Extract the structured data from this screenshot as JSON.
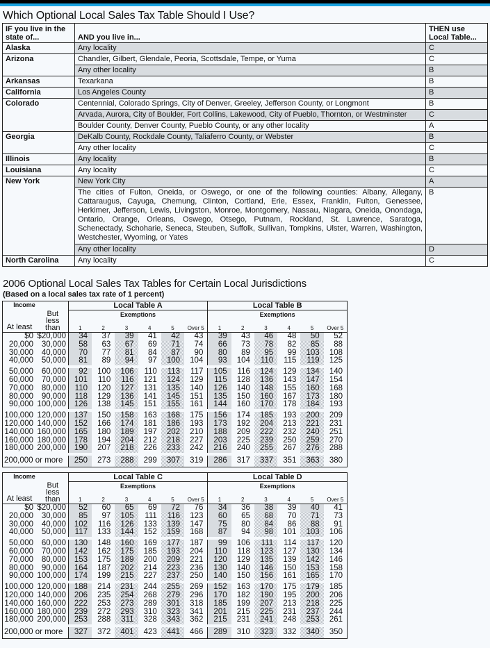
{
  "title": "Which Optional Local Sales Tax Table Should I Use?",
  "which_table": {
    "headers": [
      "IF you live in the state of...",
      "AND you live in...",
      "THEN use Local Table..."
    ],
    "states": [
      {
        "name": "Alaska",
        "rows": [
          {
            "locality": "Any locality",
            "table": "C"
          }
        ]
      },
      {
        "name": "Arizona",
        "rows": [
          {
            "locality": "Chandler, Gilbert, Glendale, Peoria, Scottsdale, Tempe, or Yuma",
            "table": "C"
          },
          {
            "locality": "Any other locality",
            "table": "B"
          }
        ]
      },
      {
        "name": "Arkansas",
        "rows": [
          {
            "locality": "Texarkana",
            "table": "B"
          }
        ]
      },
      {
        "name": "California",
        "rows": [
          {
            "locality": "Los Angeles County",
            "table": "B"
          }
        ]
      },
      {
        "name": "Colorado",
        "rows": [
          {
            "locality": "Centennial, Colorado Springs, City of Denver, Greeley, Jefferson County, or Longmont",
            "table": "B"
          },
          {
            "locality": "Arvada, Aurora, City of Boulder, Fort Collins, Lakewood, City of Pueblo, Thornton, or Westminster",
            "table": "C"
          },
          {
            "locality": "Boulder County, Denver County, Pueblo County, or any other locality",
            "table": "A"
          }
        ]
      },
      {
        "name": "Georgia",
        "rows": [
          {
            "locality": "DeKalb County, Rockdale County, Taliaferro County, or Webster",
            "table": "B"
          },
          {
            "locality": "Any other locality",
            "table": "C"
          }
        ]
      },
      {
        "name": "Illinois",
        "rows": [
          {
            "locality": "Any locality",
            "table": "B"
          }
        ]
      },
      {
        "name": "Louisiana",
        "rows": [
          {
            "locality": "Any locality",
            "table": "C"
          }
        ]
      },
      {
        "name": "New York",
        "rows": [
          {
            "locality": "New York City",
            "table": "A"
          },
          {
            "locality": "The cities of Fulton, Oneida, or Oswego, or one of the following counties: Albany, Allegany, Cattaraugus, Cayuga, Chemung, Clinton, Cortland, Erie, Essex, Franklin, Fulton, Genessee, Herkimer, Jefferson, Lewis, Livingston, Monroe, Montgomery, Nassau, Niagara, Oneida, Onondaga, Ontario, Orange, Orleans, Oswego, Otsego, Putnam, Rockland, St. Lawrence, Saratoga, Schenectady, Schoharie, Seneca, Steuben, Suffolk, Sullivan, Tompkins, Ulster, Warren, Washington, Westchester, Wyoming, or Yates",
            "table": "B"
          },
          {
            "locality": "Any other locality",
            "table": "D"
          }
        ]
      },
      {
        "name": "North Carolina",
        "rows": [
          {
            "locality": "Any locality",
            "table": "C"
          }
        ]
      }
    ]
  },
  "tables_title": "2006 Optional Local Sales Tax Tables for Certain Local Jurisdictions",
  "tables_subtitle": "(Based on a local sales tax rate of 1 percent)",
  "income_header": {
    "income": "Income",
    "at_least": "At least",
    "but_less_than": "But less than"
  },
  "exemptions_label": "Exemptions",
  "exemption_columns": [
    "1",
    "2",
    "3",
    "4",
    "5",
    "Over 5"
  ],
  "income_rows": [
    [
      "$0",
      "$20,000"
    ],
    [
      "20,000",
      "30,000"
    ],
    [
      "30,000",
      "40,000"
    ],
    [
      "40,000",
      "50,000"
    ],
    [
      "50,000",
      "60,000"
    ],
    [
      "60,000",
      "70,000"
    ],
    [
      "70,000",
      "80,000"
    ],
    [
      "80,000",
      "90,000"
    ],
    [
      "90,000",
      "100,000"
    ],
    [
      "100,000",
      "120,000"
    ],
    [
      "120,000",
      "140,000"
    ],
    [
      "140,000",
      "160,000"
    ],
    [
      "160,000",
      "180,000"
    ],
    [
      "180,000",
      "200,000"
    ],
    [
      "200,000 or more",
      ""
    ]
  ],
  "local_tables": [
    {
      "name": "Local Table A",
      "values": [
        [
          34,
          37,
          39,
          41,
          42,
          43
        ],
        [
          58,
          63,
          67,
          69,
          71,
          74
        ],
        [
          70,
          77,
          81,
          84,
          87,
          90
        ],
        [
          81,
          89,
          94,
          97,
          100,
          104
        ],
        [
          92,
          100,
          106,
          110,
          113,
          117
        ],
        [
          101,
          110,
          116,
          121,
          124,
          129
        ],
        [
          110,
          120,
          127,
          131,
          135,
          140
        ],
        [
          118,
          129,
          136,
          141,
          145,
          151
        ],
        [
          126,
          138,
          145,
          151,
          155,
          161
        ],
        [
          137,
          150,
          158,
          163,
          168,
          175
        ],
        [
          152,
          166,
          174,
          181,
          186,
          193
        ],
        [
          165,
          180,
          189,
          197,
          202,
          210
        ],
        [
          178,
          194,
          204,
          212,
          218,
          227
        ],
        [
          190,
          207,
          218,
          226,
          233,
          242
        ],
        [
          250,
          273,
          288,
          299,
          307,
          319
        ]
      ]
    },
    {
      "name": "Local Table B",
      "values": [
        [
          39,
          43,
          46,
          48,
          50,
          52
        ],
        [
          66,
          73,
          78,
          82,
          85,
          88
        ],
        [
          80,
          89,
          95,
          99,
          103,
          108
        ],
        [
          93,
          104,
          110,
          115,
          119,
          125
        ],
        [
          105,
          116,
          124,
          129,
          134,
          140
        ],
        [
          115,
          128,
          136,
          143,
          147,
          154
        ],
        [
          126,
          140,
          148,
          155,
          160,
          168
        ],
        [
          135,
          150,
          160,
          167,
          173,
          180
        ],
        [
          144,
          160,
          170,
          178,
          184,
          193
        ],
        [
          156,
          174,
          185,
          193,
          200,
          209
        ],
        [
          173,
          192,
          204,
          213,
          221,
          231
        ],
        [
          188,
          209,
          222,
          232,
          240,
          251
        ],
        [
          203,
          225,
          239,
          250,
          259,
          270
        ],
        [
          216,
          240,
          255,
          267,
          276,
          288
        ],
        [
          286,
          317,
          337,
          351,
          363,
          380
        ]
      ]
    },
    {
      "name": "Local Table C",
      "values": [
        [
          52,
          60,
          65,
          69,
          72,
          76
        ],
        [
          85,
          97,
          105,
          111,
          116,
          123
        ],
        [
          102,
          116,
          126,
          133,
          139,
          147
        ],
        [
          117,
          133,
          144,
          152,
          159,
          168
        ],
        [
          130,
          148,
          160,
          169,
          177,
          187
        ],
        [
          142,
          162,
          175,
          185,
          193,
          204
        ],
        [
          153,
          175,
          189,
          200,
          209,
          221
        ],
        [
          164,
          187,
          202,
          214,
          223,
          236
        ],
        [
          174,
          199,
          215,
          227,
          237,
          250
        ],
        [
          188,
          214,
          231,
          244,
          255,
          269
        ],
        [
          206,
          235,
          254,
          268,
          279,
          296
        ],
        [
          222,
          253,
          273,
          289,
          301,
          318
        ],
        [
          239,
          272,
          293,
          310,
          323,
          341
        ],
        [
          253,
          288,
          311,
          328,
          343,
          362
        ],
        [
          327,
          372,
          401,
          423,
          441,
          466
        ]
      ]
    },
    {
      "name": "Local Table D",
      "values": [
        [
          34,
          36,
          38,
          39,
          40,
          41
        ],
        [
          60,
          65,
          68,
          70,
          71,
          73
        ],
        [
          75,
          80,
          84,
          86,
          88,
          91
        ],
        [
          87,
          94,
          98,
          101,
          103,
          106
        ],
        [
          99,
          106,
          111,
          114,
          117,
          120
        ],
        [
          110,
          118,
          123,
          127,
          130,
          134
        ],
        [
          120,
          129,
          135,
          139,
          142,
          146
        ],
        [
          130,
          140,
          146,
          150,
          153,
          158
        ],
        [
          140,
          150,
          156,
          161,
          165,
          170
        ],
        [
          152,
          163,
          170,
          175,
          179,
          185
        ],
        [
          170,
          182,
          190,
          195,
          200,
          206
        ],
        [
          185,
          199,
          207,
          213,
          218,
          225
        ],
        [
          201,
          215,
          225,
          231,
          237,
          244
        ],
        [
          215,
          231,
          241,
          248,
          253,
          261
        ],
        [
          289,
          310,
          323,
          332,
          340,
          350
        ]
      ]
    }
  ],
  "colors": {
    "accent_bar": "#1aa3e0",
    "top_bar": "#000000",
    "stipple": "#b9bec4"
  }
}
